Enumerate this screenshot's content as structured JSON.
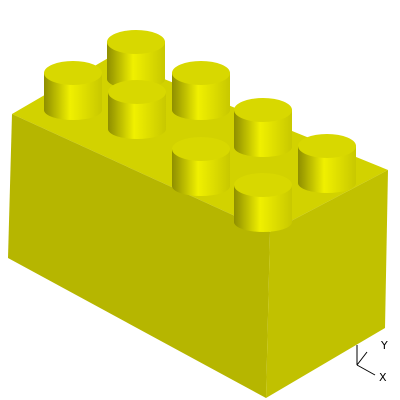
{
  "viewport": {
    "background": "#ffffff",
    "model": "brick-2x4",
    "stud_count": 8
  },
  "colors": {
    "top_face": "#d2d200",
    "left_face": "#b6b600",
    "right_face": "#c1c100",
    "stud_cap": "#d8d800",
    "stud_body_light": "#f0f000",
    "stud_body_mid": "#c8c800",
    "stud_body_dark": "#8e8e00",
    "axis_line": "#000000"
  },
  "axis_triad": {
    "y_label": "Y",
    "x_label": "X"
  }
}
